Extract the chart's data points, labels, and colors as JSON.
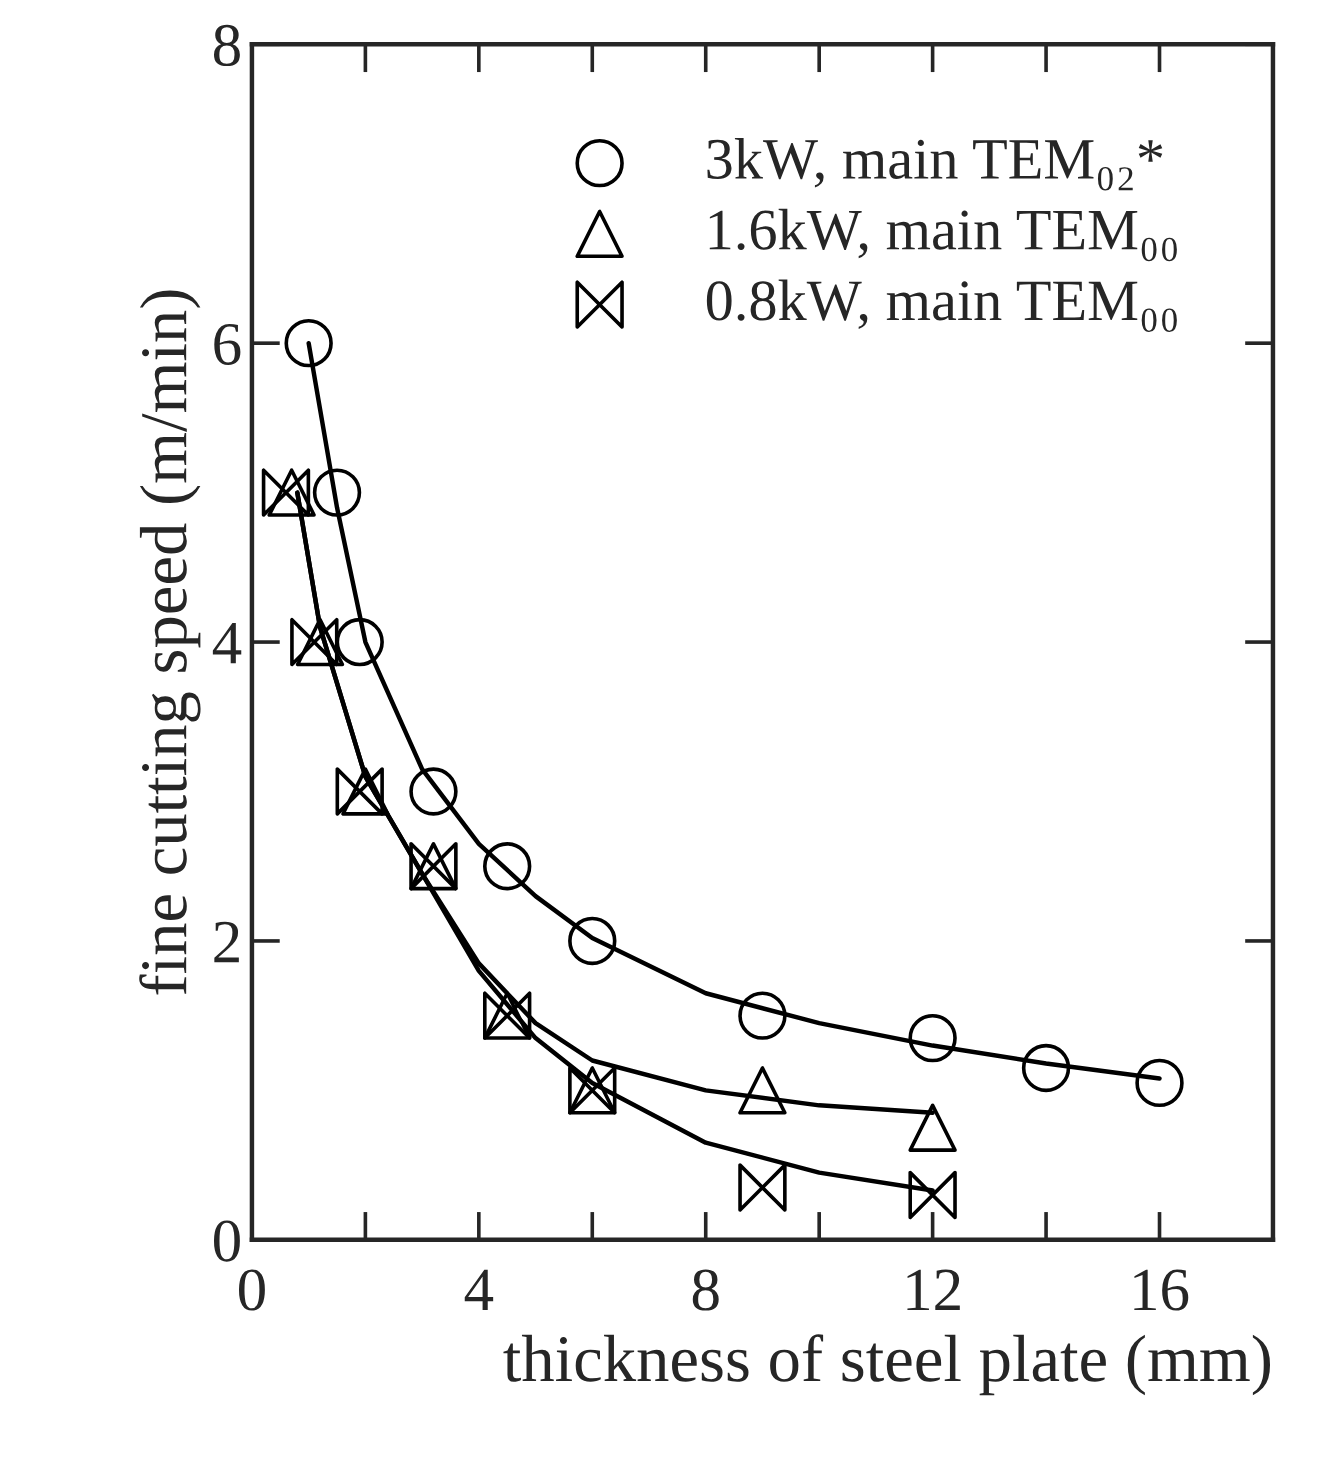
{
  "chart_data": {
    "type": "scatter",
    "xlabel": "thickness of steel plate (mm)",
    "ylabel": "fine cutting speed (m/min)",
    "xlim": [
      0,
      18
    ],
    "ylim": [
      0,
      8
    ],
    "xticks": [
      0,
      {
        "value": 2,
        "label": null
      },
      4,
      {
        "value": 6,
        "label": null
      },
      8,
      {
        "value": 10,
        "label": null
      },
      12,
      {
        "value": 14,
        "label": null
      },
      16
    ],
    "yticks": [
      0,
      2,
      4,
      6,
      8
    ],
    "grid": false,
    "legend": "top right",
    "series": [
      {
        "name": "3kW, main TEM₀₂*",
        "color": "#000000",
        "marker": "circle",
        "x": [
          1,
          1.5,
          1.9,
          3.2,
          4.5,
          6,
          9,
          12,
          14,
          16
        ],
        "values": [
          6.0,
          5.0,
          4.0,
          3.0,
          2.5,
          2.0,
          1.5,
          1.35,
          1.15,
          1.05
        ]
      },
      {
        "name": "1.6kW, main TEM₀₀",
        "color": "#000000",
        "marker": "triangle",
        "x": [
          0.7,
          1.2,
          2,
          3.2,
          4.5,
          6,
          9,
          12
        ],
        "values": [
          5.0,
          4.0,
          3.0,
          2.5,
          1.5,
          1.0,
          1.0,
          0.75
        ]
      },
      {
        "name": "0.8kW, main TEM₀₀",
        "color": "#000000",
        "x": [
          0.6,
          1.1,
          1.9,
          3.2,
          4.5,
          6,
          9,
          12
        ],
        "values": [
          5.0,
          4.0,
          3.0,
          2.5,
          1.5,
          1.0,
          0.35,
          0.3
        ]
      },
      {
        "type": "line",
        "color": "#000000",
        "marker": "none",
        "line_style": "solid",
        "x": [
          1,
          1.5,
          2,
          3,
          4,
          5,
          6,
          8,
          10,
          12,
          14,
          16
        ],
        "values": [
          6.0,
          4.9,
          4.0,
          3.15,
          2.65,
          2.3,
          2.02,
          1.65,
          1.45,
          1.3,
          1.18,
          1.08
        ]
      },
      {
        "type": "line",
        "color": "#000000",
        "marker": "none",
        "line_style": "solid",
        "x": [
          0.8,
          1.2,
          2,
          3,
          4,
          5,
          6,
          8,
          10,
          12
        ],
        "values": [
          5.0,
          4.1,
          3.1,
          2.45,
          1.85,
          1.45,
          1.2,
          1.0,
          0.9,
          0.85
        ]
      },
      {
        "type": "line",
        "color": "#000000",
        "marker": "none",
        "line_style": "solid",
        "x": [
          0.8,
          1.2,
          2,
          3,
          4,
          5,
          6,
          8,
          10,
          12
        ],
        "values": [
          5.0,
          4.1,
          3.1,
          2.45,
          1.8,
          1.35,
          1.05,
          0.65,
          0.45,
          0.33
        ]
      }
    ]
  }
}
